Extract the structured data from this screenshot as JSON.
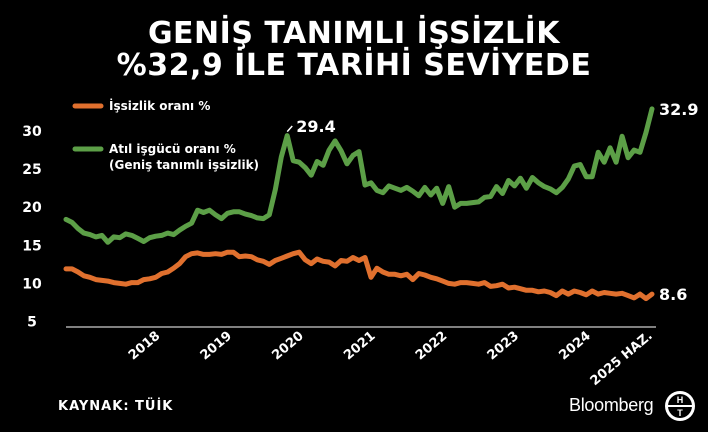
{
  "title_line1": "GENİŞ TANIMLI İŞSİZLİK",
  "title_line2": "%32,9 İLE TARİHİ SEVİYEDE",
  "source": "KAYNAK: TÜİK",
  "brand": "Bloomberg",
  "logo_letters": "HT",
  "colors": {
    "background": "#000000",
    "unemployment": "#e0702e",
    "labor_underutil": "#5c9f47"
  },
  "chart_data": {
    "type": "line",
    "title": "GENİŞ TANIMLI İŞSİZLİK %32,9 İLE TARİHİ SEVİYEDE",
    "xlabel": "",
    "ylabel": "",
    "x_ticks": [
      "2018",
      "2019",
      "2020",
      "2021",
      "2022",
      "2023",
      "2024",
      "2025 HAZ."
    ],
    "y_ticks": [
      "5",
      "10",
      "15",
      "20",
      "25",
      "30"
    ],
    "ylim": [
      5,
      32.5
    ],
    "xlim": [
      "2017-04",
      "2025-06"
    ],
    "grid": false,
    "legend_position": "top-left",
    "legend": [
      {
        "series": 0,
        "lines": [
          "İşsizlik oranı %"
        ]
      },
      {
        "series": 1,
        "lines": [
          "Atıl işgücü oranı %",
          "(Geniş tanımlı işsizlik)"
        ]
      }
    ],
    "annotations": [
      {
        "series": 1,
        "x": "2020-05",
        "text": "29.4"
      },
      {
        "series": 1,
        "x": "2025-06",
        "text": "32.9"
      },
      {
        "series": 0,
        "x": "2025-06",
        "text": "8.6"
      }
    ],
    "x": [
      "2017-04",
      "2017-05",
      "2017-06",
      "2017-07",
      "2017-08",
      "2017-09",
      "2017-10",
      "2017-11",
      "2017-12",
      "2018-01",
      "2018-02",
      "2018-03",
      "2018-04",
      "2018-05",
      "2018-06",
      "2018-07",
      "2018-08",
      "2018-09",
      "2018-10",
      "2018-11",
      "2018-12",
      "2019-01",
      "2019-02",
      "2019-03",
      "2019-04",
      "2019-05",
      "2019-06",
      "2019-07",
      "2019-08",
      "2019-09",
      "2019-10",
      "2019-11",
      "2019-12",
      "2020-01",
      "2020-02",
      "2020-03",
      "2020-04",
      "2020-05",
      "2020-06",
      "2020-07",
      "2020-08",
      "2020-09",
      "2020-10",
      "2020-11",
      "2020-12",
      "2021-01",
      "2021-02",
      "2021-03",
      "2021-04",
      "2021-05",
      "2021-06",
      "2021-07",
      "2021-08",
      "2021-09",
      "2021-10",
      "2021-11",
      "2021-12",
      "2022-01",
      "2022-02",
      "2022-03",
      "2022-04",
      "2022-05",
      "2022-06",
      "2022-07",
      "2022-08",
      "2022-09",
      "2022-10",
      "2022-11",
      "2022-12",
      "2023-01",
      "2023-02",
      "2023-03",
      "2023-04",
      "2023-05",
      "2023-06",
      "2023-07",
      "2023-08",
      "2023-09",
      "2023-10",
      "2023-11",
      "2023-12",
      "2024-01",
      "2024-02",
      "2024-03",
      "2024-04",
      "2024-05",
      "2024-06",
      "2024-07",
      "2024-08",
      "2024-09",
      "2024-10",
      "2024-11",
      "2024-12",
      "2025-01",
      "2025-02",
      "2025-03",
      "2025-04",
      "2025-05",
      "2025-06"
    ],
    "series": [
      {
        "name": "İşsizlik oranı %",
        "values": [
          11.9,
          11.9,
          11.5,
          11.0,
          10.8,
          10.5,
          10.4,
          10.3,
          10.1,
          10.0,
          9.9,
          10.1,
          10.1,
          10.5,
          10.6,
          10.8,
          11.3,
          11.5,
          12.0,
          12.6,
          13.5,
          13.9,
          14.0,
          13.8,
          13.8,
          13.9,
          13.8,
          14.1,
          14.1,
          13.5,
          13.6,
          13.5,
          13.1,
          12.9,
          12.5,
          13.0,
          13.3,
          13.6,
          13.9,
          14.1,
          13.1,
          12.6,
          13.2,
          12.9,
          12.8,
          12.3,
          13.0,
          12.9,
          13.4,
          13.0,
          13.4,
          10.8,
          12.0,
          11.5,
          11.2,
          11.2,
          11.0,
          11.2,
          10.5,
          11.3,
          11.1,
          10.8,
          10.6,
          10.3,
          10.0,
          9.9,
          10.1,
          10.1,
          10.0,
          9.9,
          10.1,
          9.6,
          9.7,
          9.9,
          9.4,
          9.5,
          9.3,
          9.1,
          9.1,
          8.9,
          9.0,
          8.8,
          8.4,
          9.0,
          8.6,
          9.0,
          8.8,
          8.5,
          9.0,
          8.6,
          8.8,
          8.7,
          8.6,
          8.7,
          8.4,
          8.1,
          8.6,
          8.0,
          8.6
        ]
      },
      {
        "name": "Atıl işgücü oranı %",
        "values": [
          18.4,
          18.0,
          17.2,
          16.6,
          16.4,
          16.1,
          16.3,
          15.4,
          16.1,
          16.0,
          16.5,
          16.3,
          15.9,
          15.5,
          16.0,
          16.2,
          16.3,
          16.6,
          16.4,
          17.0,
          17.5,
          17.9,
          19.6,
          19.3,
          19.6,
          19.0,
          18.5,
          19.2,
          19.4,
          19.4,
          19.1,
          18.9,
          18.6,
          18.5,
          19.0,
          22.3,
          26.6,
          29.4,
          26.1,
          25.9,
          25.2,
          24.2,
          26.0,
          25.5,
          27.5,
          28.7,
          27.4,
          25.7,
          26.8,
          27.3,
          22.9,
          23.2,
          22.2,
          21.9,
          22.8,
          22.5,
          22.2,
          22.6,
          22.1,
          21.5,
          22.6,
          21.6,
          22.5,
          20.5,
          22.7,
          20.0,
          20.5,
          20.5,
          20.6,
          20.7,
          21.3,
          21.4,
          22.7,
          21.8,
          23.5,
          22.8,
          23.8,
          22.5,
          23.9,
          23.2,
          22.7,
          22.4,
          21.9,
          22.6,
          23.7,
          25.4,
          25.6,
          24.0,
          24.0,
          27.2,
          25.9,
          27.8,
          25.9,
          29.3,
          26.5,
          27.5,
          27.2,
          29.8,
          32.9
        ]
      }
    ]
  }
}
